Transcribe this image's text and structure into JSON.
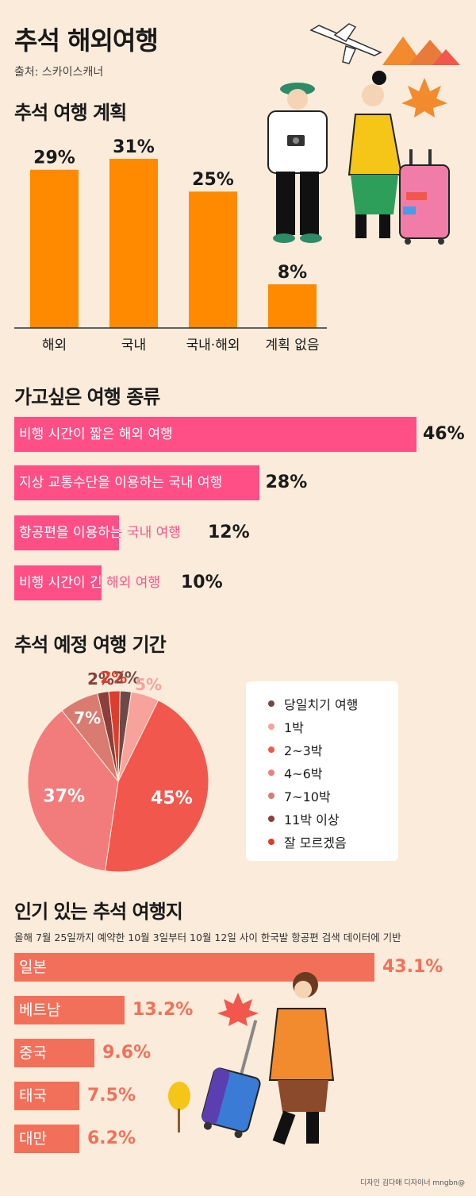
{
  "header": {
    "title": "추석 해외여행",
    "source": "출처: 스카이스캐너"
  },
  "section1": {
    "title": "추석 여행 계획"
  },
  "section2": {
    "title": "가고싶은 여행 종류"
  },
  "section3": {
    "title": "추석 예정 여행 기간"
  },
  "section4": {
    "title": "인기 있는 추석 여행지",
    "subtitle": "올해 7월 25일까지 예약한 10월 3일부터 10월 12일 사이 한국발 항공편 검색 데이터에 기반"
  },
  "chart_data": [
    {
      "type": "bar",
      "title": "추석 여행 계획",
      "categories": [
        "해외",
        "국내",
        "국내·해외",
        "계획 없음"
      ],
      "values": [
        29,
        31,
        25,
        8
      ],
      "labels": [
        "29%",
        "31%",
        "25%",
        "8%"
      ],
      "color": "#FF8A00",
      "ylim": [
        0,
        31
      ]
    },
    {
      "type": "bar",
      "orientation": "horizontal",
      "title": "가고싶은 여행 종류",
      "categories": [
        "비행 시간이 짧은 해외 여행",
        "지상 교통수단을 이용하는 국내 여행",
        "항공편을 이용하는 국내 여행",
        "비행 시간이 긴 해외 여행"
      ],
      "values": [
        46,
        28,
        12,
        10
      ],
      "labels": [
        "46%",
        "28%",
        "12%",
        "10%"
      ],
      "color": "#FF4F86",
      "xlim": [
        0,
        46
      ]
    },
    {
      "type": "pie",
      "title": "추석 예정 여행 기간",
      "slices": [
        {
          "name": "당일치기 여행",
          "value": 2,
          "label": "2%",
          "color": "#6E4A47"
        },
        {
          "name": "1박",
          "value": 5,
          "label": "5%",
          "color": "#F7A39B"
        },
        {
          "name": "2~3박",
          "value": 45,
          "label": "45%",
          "color": "#F2574E"
        },
        {
          "name": "4~6박",
          "value": 37,
          "label": "37%",
          "color": "#F27C7C"
        },
        {
          "name": "7~10박",
          "value": 7,
          "label": "7%",
          "color": "#D97B70"
        },
        {
          "name": "11박 이상",
          "value": 2,
          "label": "2%",
          "color": "#8A3F3C"
        },
        {
          "name": "잘 모르겠음",
          "value": 2,
          "label": "2%",
          "color": "#DD3D2E"
        }
      ]
    },
    {
      "type": "bar",
      "orientation": "horizontal",
      "title": "인기 있는 추석 여행지",
      "categories": [
        "일본",
        "베트남",
        "중국",
        "태국",
        "대만"
      ],
      "values": [
        43.1,
        13.2,
        9.6,
        7.5,
        6.2
      ],
      "labels": [
        "43.1%",
        "13.2%",
        "9.6%",
        "7.5%",
        "6.2%"
      ],
      "color": "#F2705A",
      "xlim": [
        0,
        43.1
      ]
    }
  ],
  "colors": {
    "background": "#FBEBDA",
    "orange": "#FF8A00",
    "pink": "#FF4F86",
    "coral": "#F2705A"
  },
  "credit": "디자인 김다애 디자이너 mngbn@"
}
